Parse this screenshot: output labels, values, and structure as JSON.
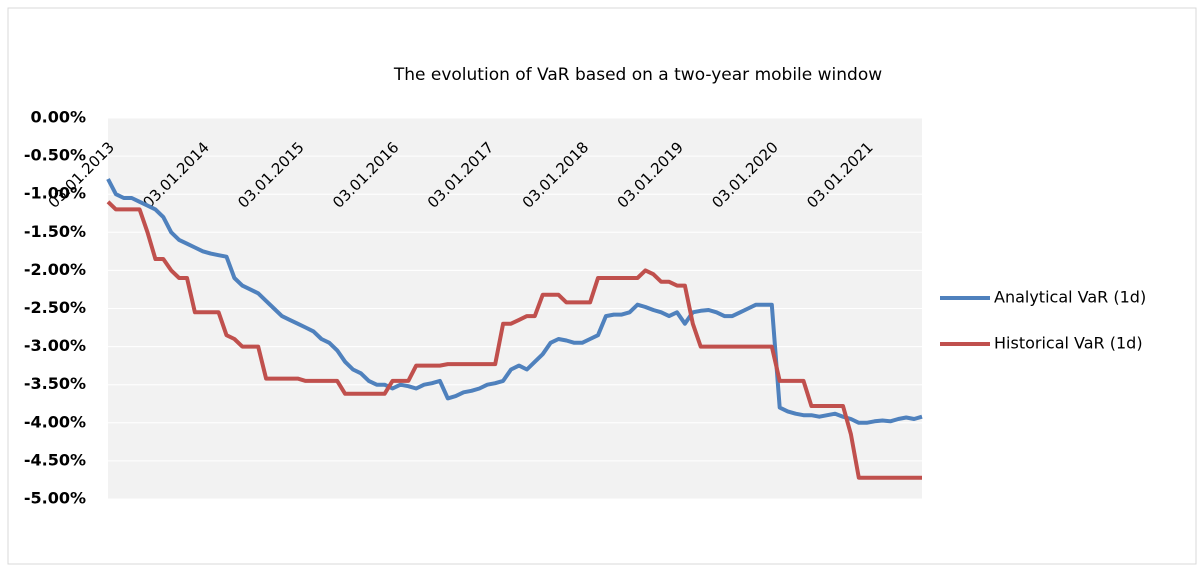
{
  "chart_data": {
    "type": "line",
    "title": "The evolution of VaR based on a two-year mobile window",
    "categories": [
      "03.01.2013",
      null,
      null,
      null,
      null,
      null,
      null,
      null,
      null,
      null,
      null,
      null,
      "03.01.2014",
      null,
      null,
      null,
      null,
      null,
      null,
      null,
      null,
      null,
      null,
      null,
      "03.01.2015",
      null,
      null,
      null,
      null,
      null,
      null,
      null,
      null,
      null,
      null,
      null,
      "03.01.2016",
      null,
      null,
      null,
      null,
      null,
      null,
      null,
      null,
      null,
      null,
      null,
      "03.01.2017",
      null,
      null,
      null,
      null,
      null,
      null,
      null,
      null,
      null,
      null,
      null,
      "03.01.2018",
      null,
      null,
      null,
      null,
      null,
      null,
      null,
      null,
      null,
      null,
      null,
      "03.01.2019",
      null,
      null,
      null,
      null,
      null,
      null,
      null,
      null,
      null,
      null,
      null,
      "03.01.2020",
      null,
      null,
      null,
      null,
      null,
      null,
      null,
      null,
      null,
      null,
      null,
      "03.01.2021",
      null,
      null,
      null,
      null,
      null,
      null,
      null
    ],
    "series": [
      {
        "name": "Analytical VaR (1d)",
        "color": "#4f81bd",
        "values": [
          -0.8,
          -1.0,
          -1.05,
          -1.05,
          -1.1,
          -1.15,
          -1.2,
          -1.3,
          -1.5,
          -1.6,
          -1.65,
          -1.7,
          -1.75,
          -1.78,
          -1.8,
          -1.82,
          -2.1,
          -2.2,
          -2.25,
          -2.3,
          -2.4,
          -2.5,
          -2.6,
          -2.65,
          -2.7,
          -2.75,
          -2.8,
          -2.9,
          -2.95,
          -3.05,
          -3.2,
          -3.3,
          -3.35,
          -3.45,
          -3.5,
          -3.5,
          -3.55,
          -3.5,
          -3.52,
          -3.55,
          -3.5,
          -3.48,
          -3.45,
          -3.68,
          -3.65,
          -3.6,
          -3.58,
          -3.55,
          -3.5,
          -3.48,
          -3.45,
          -3.3,
          -3.25,
          -3.3,
          -3.2,
          -3.1,
          -2.95,
          -2.9,
          -2.92,
          -2.95,
          -2.95,
          -2.9,
          -2.85,
          -2.6,
          -2.58,
          -2.58,
          -2.55,
          -2.45,
          -2.48,
          -2.52,
          -2.55,
          -2.6,
          -2.55,
          -2.7,
          -2.55,
          -2.53,
          -2.52,
          -2.55,
          -2.6,
          -2.6,
          -2.55,
          -2.5,
          -2.45,
          -2.45,
          -2.45,
          -3.8,
          -3.85,
          -3.88,
          -3.9,
          -3.9,
          -3.92,
          -3.9,
          -3.88,
          -3.92,
          -3.95,
          -4.0,
          -4.0,
          -3.98,
          -3.97,
          -3.98,
          -3.95,
          -3.93,
          -3.95,
          -3.92
        ]
      },
      {
        "name": "Historical VaR (1d)",
        "color": "#c0504d",
        "values": [
          -1.1,
          -1.2,
          -1.2,
          -1.2,
          -1.2,
          -1.5,
          -1.85,
          -1.85,
          -2.0,
          -2.1,
          -2.1,
          -2.55,
          -2.55,
          -2.55,
          -2.55,
          -2.85,
          -2.9,
          -3.0,
          -3.0,
          -3.0,
          -3.42,
          -3.42,
          -3.42,
          -3.42,
          -3.42,
          -3.45,
          -3.45,
          -3.45,
          -3.45,
          -3.45,
          -3.62,
          -3.62,
          -3.62,
          -3.62,
          -3.62,
          -3.62,
          -3.45,
          -3.45,
          -3.45,
          -3.25,
          -3.25,
          -3.25,
          -3.25,
          -3.23,
          -3.23,
          -3.23,
          -3.23,
          -3.23,
          -3.23,
          -3.23,
          -2.7,
          -2.7,
          -2.65,
          -2.6,
          -2.6,
          -2.32,
          -2.32,
          -2.32,
          -2.42,
          -2.42,
          -2.42,
          -2.42,
          -2.1,
          -2.1,
          -2.1,
          -2.1,
          -2.1,
          -2.1,
          -2.0,
          -2.05,
          -2.15,
          -2.15,
          -2.2,
          -2.2,
          -2.7,
          -3.0,
          -3.0,
          -3.0,
          -3.0,
          -3.0,
          -3.0,
          -3.0,
          -3.0,
          -3.0,
          -3.0,
          -3.45,
          -3.45,
          -3.45,
          -3.45,
          -3.78,
          -3.78,
          -3.78,
          -3.78,
          -3.78,
          -4.15,
          -4.72,
          -4.72,
          -4.72,
          -4.72,
          -4.72,
          -4.72,
          -4.72,
          -4.72,
          -4.72
        ]
      }
    ],
    "ylim": [
      -5,
      0
    ],
    "yticks": [
      {
        "value": -5,
        "label": "-5.00%"
      },
      {
        "value": -4.5,
        "label": "-4.50%"
      },
      {
        "value": -4,
        "label": "-4.00%"
      },
      {
        "value": -3.5,
        "label": "-3.50%"
      },
      {
        "value": -3,
        "label": "-3.00%"
      },
      {
        "value": -2.5,
        "label": "-2.50%"
      },
      {
        "value": -2,
        "label": "-2.00%"
      },
      {
        "value": -1.5,
        "label": "-1.50%"
      },
      {
        "value": -1,
        "label": "-1.00%"
      },
      {
        "value": -0.5,
        "label": "-0.50%"
      },
      {
        "value": 0,
        "label": "0.00%"
      }
    ],
    "grid": true,
    "legend": "right"
  }
}
